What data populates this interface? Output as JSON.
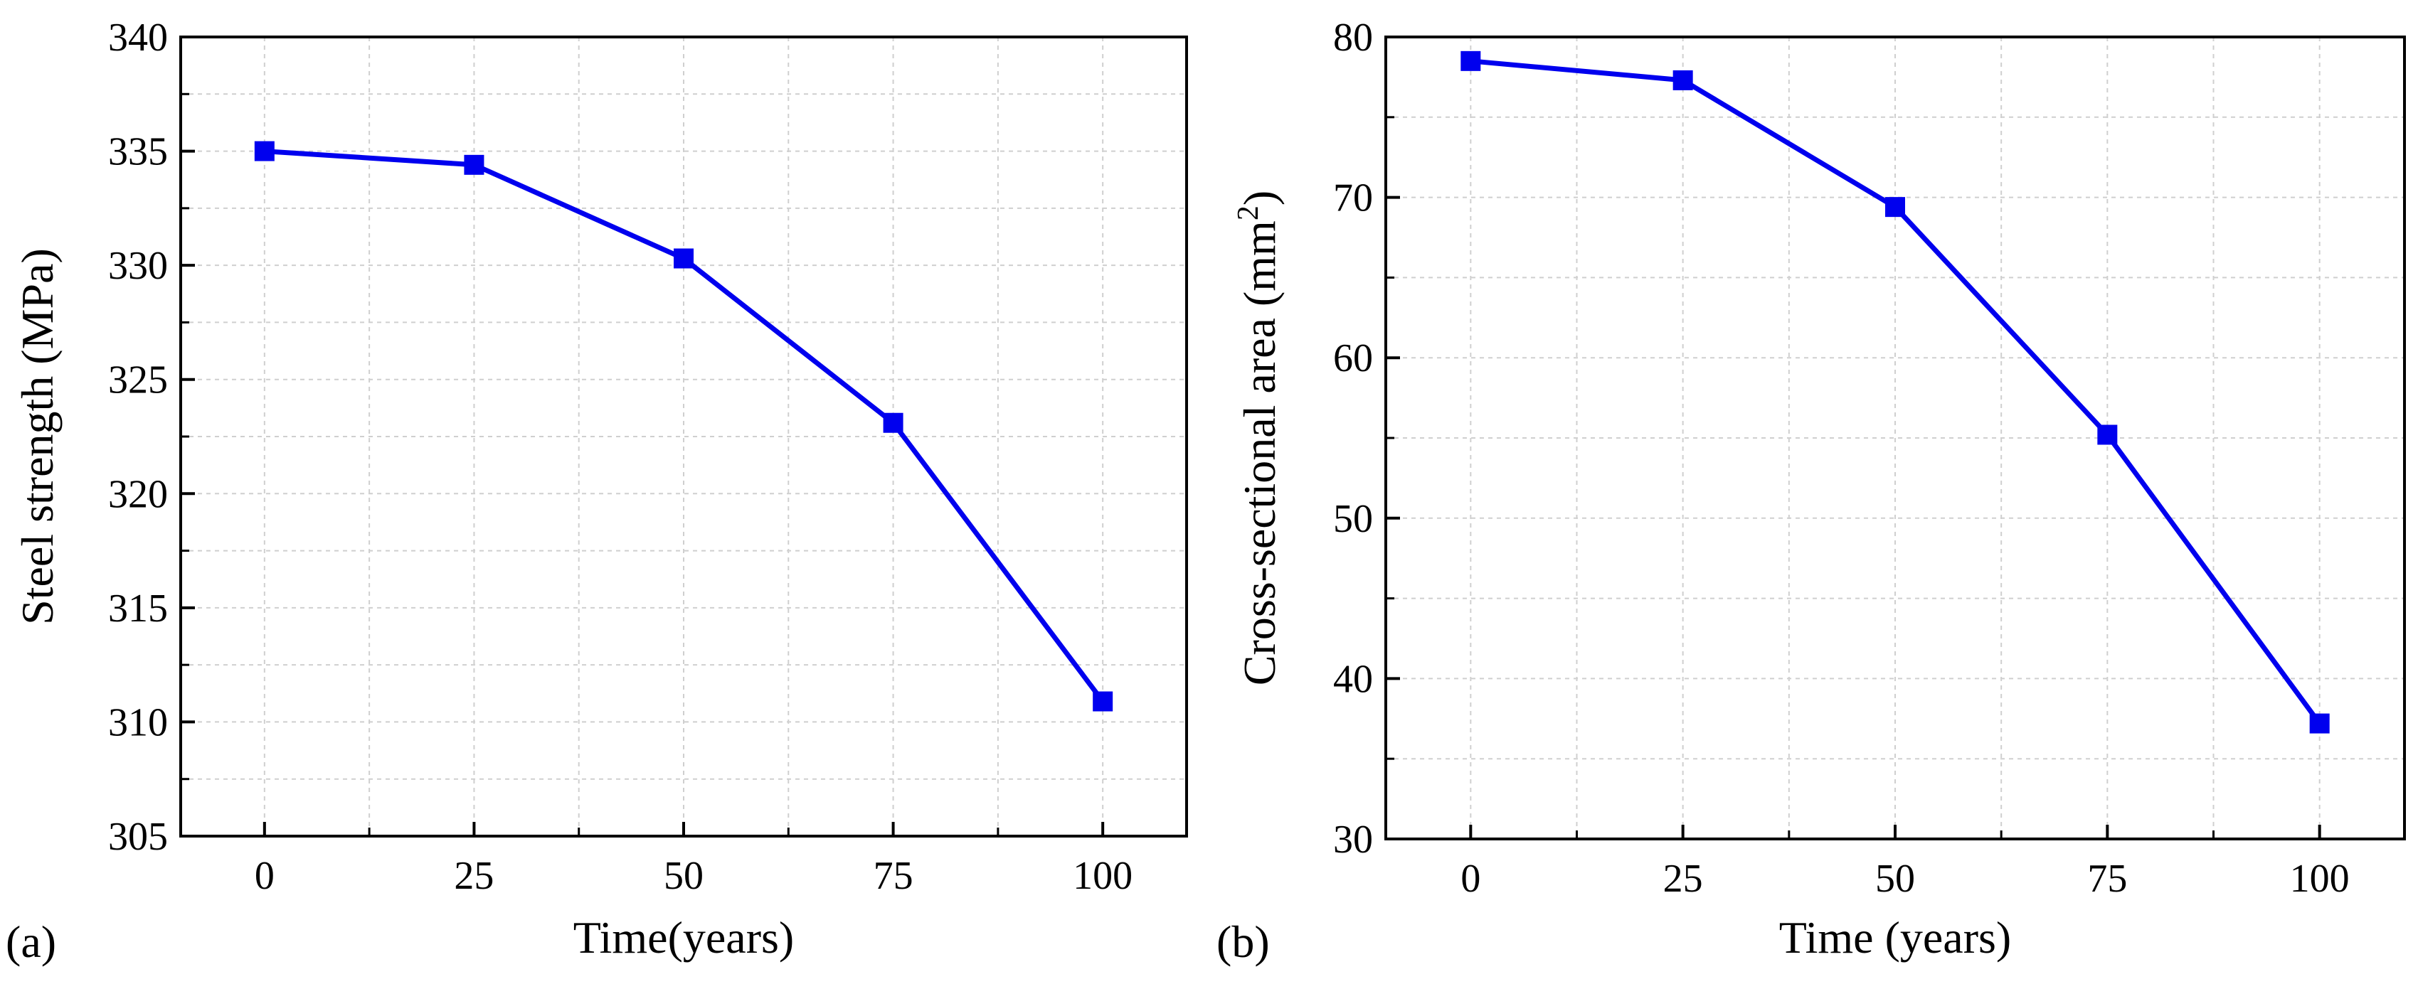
{
  "colors": {
    "series": "#0000ee",
    "grid": "#cfcfcf",
    "axis": "#000000"
  },
  "chart_data": [
    {
      "type": "line",
      "panel_label": "(a)",
      "title": "",
      "xlabel": "Time(years)",
      "ylabel": "Steel strength (MPa)",
      "xlim": [
        -10,
        110
      ],
      "ylim": [
        305,
        340
      ],
      "xticks": [
        0,
        25,
        50,
        75,
        100
      ],
      "yticks": [
        305,
        310,
        315,
        320,
        325,
        330,
        335,
        340
      ],
      "x": [
        0,
        25,
        50,
        75,
        100
      ],
      "series": [
        {
          "name": "Steel strength",
          "values": [
            335.0,
            334.4,
            330.3,
            323.1,
            310.9
          ]
        }
      ],
      "grid": true,
      "marker": "square"
    },
    {
      "type": "line",
      "panel_label": "(b)",
      "title": "",
      "xlabel": "Time (years)",
      "ylabel_main": "Cross-sectional area (mm",
      "ylabel_sup": "2",
      "ylabel_end": ")",
      "xlim": [
        -10,
        110
      ],
      "ylim": [
        30,
        80
      ],
      "xticks": [
        0,
        25,
        50,
        75,
        100
      ],
      "yticks": [
        30,
        40,
        50,
        60,
        70,
        80
      ],
      "x": [
        0,
        25,
        50,
        75,
        100
      ],
      "series": [
        {
          "name": "Cross-sectional area",
          "values": [
            78.5,
            77.3,
            69.4,
            55.2,
            37.2
          ]
        }
      ],
      "grid": true,
      "marker": "square"
    }
  ]
}
